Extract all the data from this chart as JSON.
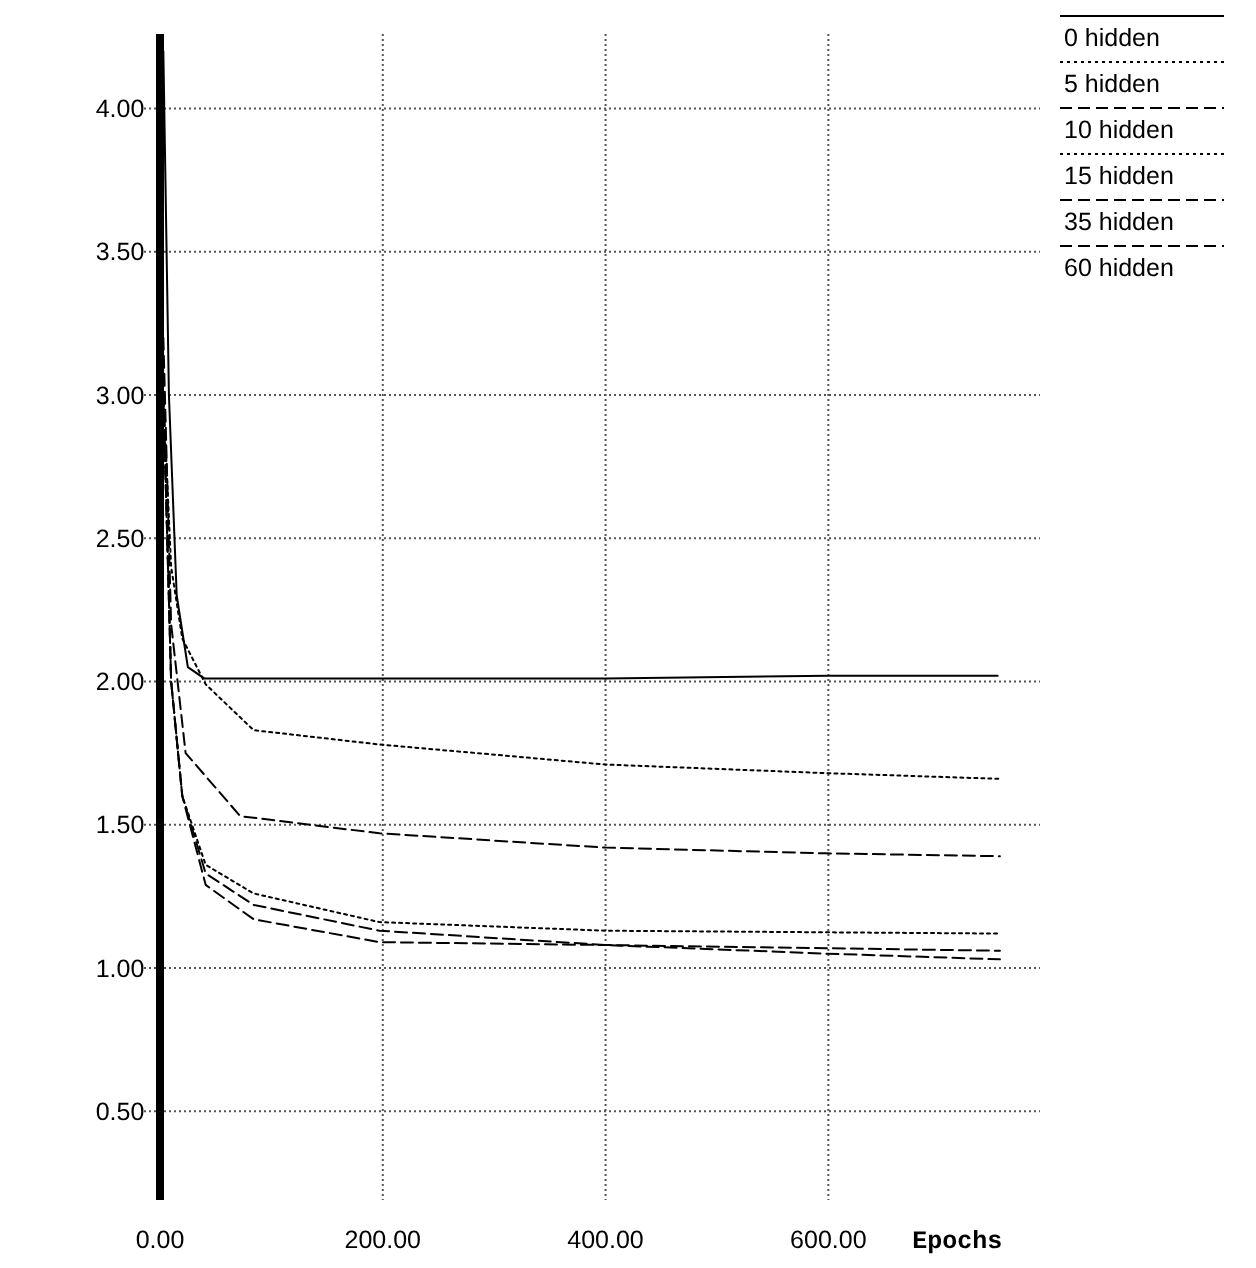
{
  "chart_data": {
    "type": "line",
    "xlabel": "Epochs",
    "xlim": [
      0,
      790
    ],
    "ylim": [
      0.19,
      4.26
    ],
    "xticks": [
      {
        "value": 0,
        "label": "0.00"
      },
      {
        "value": 200,
        "label": "200.00"
      },
      {
        "value": 400,
        "label": "400.00"
      },
      {
        "value": 600,
        "label": "600.00"
      }
    ],
    "yticks": [
      {
        "value": 0.5,
        "label": "0.50"
      },
      {
        "value": 1,
        "label": "1.00"
      },
      {
        "value": 1.5,
        "label": "1.50"
      },
      {
        "value": 2,
        "label": "2.00"
      },
      {
        "value": 2.5,
        "label": "2.50"
      },
      {
        "value": 3,
        "label": "3.00"
      },
      {
        "value": 3.5,
        "label": "3.50"
      },
      {
        "value": 4,
        "label": "4.00"
      }
    ],
    "grid": true,
    "legend": "top right",
    "series": [
      {
        "name": "0 hidden",
        "color": "#000000",
        "line_style": "solid",
        "x": [
          3,
          8,
          15,
          25,
          40,
          200,
          400,
          600,
          752
        ],
        "values": [
          4.2,
          3.0,
          2.3,
          2.05,
          2.01,
          2.01,
          2.01,
          2.02,
          2.02
        ]
      },
      {
        "name": "5 hidden",
        "color": "#000000",
        "line_style": "dotted",
        "x": [
          3,
          10,
          20,
          41,
          84,
          197,
          400,
          598,
          754
        ],
        "values": [
          3.0,
          2.4,
          2.15,
          1.99,
          1.83,
          1.78,
          1.71,
          1.68,
          1.66
        ]
      },
      {
        "name": "10 hidden",
        "color": "#000000",
        "line_style": "dashed",
        "x": [
          3,
          10,
          23,
          72,
          197,
          400,
          598,
          754
        ],
        "values": [
          3.2,
          2.2,
          1.75,
          1.53,
          1.47,
          1.42,
          1.4,
          1.39
        ]
      },
      {
        "name": "15 hidden",
        "color": "#000000",
        "line_style": "dotted",
        "x": [
          3,
          10,
          20,
          41,
          84,
          197,
          400,
          754
        ],
        "values": [
          3.0,
          2.0,
          1.6,
          1.36,
          1.26,
          1.16,
          1.13,
          1.12
        ]
      },
      {
        "name": "35 hidden",
        "color": "#000000",
        "line_style": "dashed",
        "x": [
          3,
          10,
          20,
          41,
          84,
          197,
          400,
          754
        ],
        "values": [
          3.0,
          2.0,
          1.6,
          1.29,
          1.17,
          1.09,
          1.08,
          1.06
        ]
      },
      {
        "name": "60 hidden",
        "color": "#000000",
        "line_style": "dashed",
        "x": [
          3,
          10,
          20,
          41,
          84,
          197,
          400,
          598,
          754
        ],
        "values": [
          3.0,
          2.0,
          1.6,
          1.33,
          1.22,
          1.13,
          1.08,
          1.05,
          1.03
        ]
      }
    ]
  }
}
